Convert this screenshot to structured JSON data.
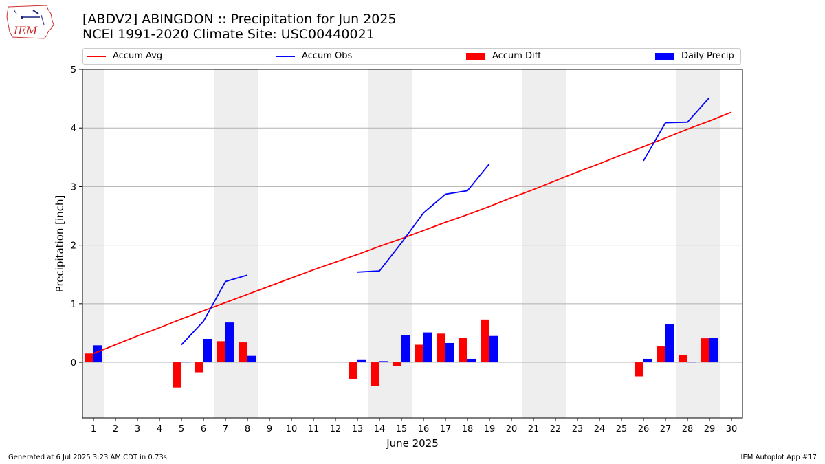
{
  "header": {
    "logo_text": "IEM",
    "title_line1": "[ABDV2] ABINGDON :: Precipitation for Jun 2025",
    "title_line2": "NCEI 1991-2020 Climate Site: USC00440021"
  },
  "legend": {
    "accum_avg": "Accum Avg",
    "accum_obs": "Accum Obs",
    "accum_diff": "Accum Diff",
    "daily_precip": "Daily Precip"
  },
  "footer": {
    "generated": "Generated at 6 Jul 2025 3:23 AM CDT in 0.73s",
    "app": "IEM Autoplot App #17"
  },
  "colors": {
    "avg": "#ff0000",
    "obs": "#0000ff",
    "diff": "#ff0000",
    "daily": "#0000ff",
    "weekend_shade": "#eeeeee",
    "grid": "#b0b0b0"
  },
  "chart_data": {
    "type": "bar",
    "xlabel": "June 2025",
    "ylabel": "Precipitation [inch]",
    "xlim": [
      0.5,
      30.5
    ],
    "ylim": [
      -0.95,
      5.0
    ],
    "yticks": [
      0,
      1,
      2,
      3,
      4,
      5
    ],
    "grid": true,
    "legend_position": "top",
    "days": [
      1,
      2,
      3,
      4,
      5,
      6,
      7,
      8,
      9,
      10,
      11,
      12,
      13,
      14,
      15,
      16,
      17,
      18,
      19,
      20,
      21,
      22,
      23,
      24,
      25,
      26,
      27,
      28,
      29,
      30
    ],
    "weekend_shading": [
      [
        0.5,
        1.5
      ],
      [
        6.5,
        8.5
      ],
      [
        13.5,
        15.5
      ],
      [
        20.5,
        22.5
      ],
      [
        27.5,
        29.5
      ]
    ],
    "series": [
      {
        "name": "Accum Avg",
        "kind": "line",
        "x": [
          1,
          2,
          3,
          4,
          5,
          6,
          7,
          8,
          9,
          10,
          11,
          12,
          13,
          14,
          15,
          16,
          17,
          18,
          19,
          20,
          21,
          22,
          23,
          24,
          25,
          26,
          27,
          28,
          29,
          30
        ],
        "values": [
          0.15,
          0.3,
          0.45,
          0.59,
          0.74,
          0.88,
          1.02,
          1.16,
          1.3,
          1.44,
          1.58,
          1.71,
          1.84,
          1.98,
          2.11,
          2.25,
          2.39,
          2.52,
          2.66,
          2.81,
          2.95,
          3.1,
          3.25,
          3.39,
          3.54,
          3.68,
          3.83,
          3.98,
          4.12,
          4.27
        ]
      },
      {
        "name": "Accum Obs",
        "kind": "line",
        "segments": [
          {
            "x": [
              5,
              6,
              7,
              8
            ],
            "values": [
              0.3,
              0.7,
              1.38,
              1.49
            ]
          },
          {
            "x": [
              13,
              14,
              15,
              16,
              17,
              18,
              19
            ],
            "values": [
              1.54,
              1.56,
              2.04,
              2.55,
              2.87,
              2.93,
              3.39
            ]
          },
          {
            "x": [
              26,
              27,
              28,
              29
            ],
            "values": [
              3.44,
              4.09,
              4.1,
              4.52
            ]
          }
        ]
      },
      {
        "name": "Accum Diff",
        "kind": "bar",
        "x": [
          1,
          5,
          6,
          7,
          8,
          13,
          14,
          15,
          16,
          17,
          18,
          19,
          26,
          27,
          28,
          29
        ],
        "values": [
          0.15,
          -0.43,
          -0.17,
          0.36,
          0.34,
          -0.29,
          -0.41,
          -0.07,
          0.3,
          0.49,
          0.42,
          0.73,
          -0.24,
          0.27,
          0.13,
          0.41
        ]
      },
      {
        "name": "Daily Precip",
        "kind": "bar",
        "x": [
          1,
          5,
          6,
          7,
          8,
          13,
          14,
          15,
          16,
          17,
          18,
          19,
          26,
          27,
          28,
          29
        ],
        "values": [
          0.29,
          0.01,
          0.4,
          0.68,
          0.11,
          0.05,
          0.02,
          0.47,
          0.51,
          0.33,
          0.06,
          0.45,
          0.06,
          0.65,
          0.01,
          0.42
        ]
      }
    ]
  }
}
